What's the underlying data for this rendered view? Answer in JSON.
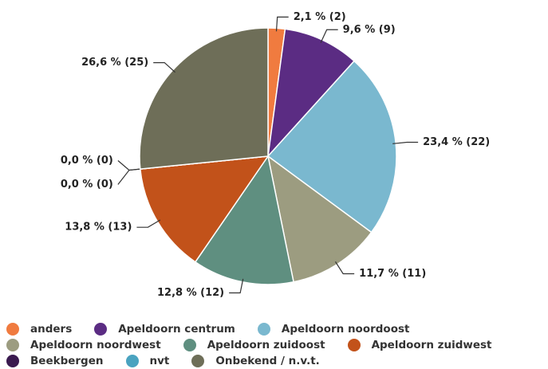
{
  "chart_data": {
    "type": "pie",
    "categories": [
      "anders",
      "Apeldoorn centrum",
      "Apeldoorn noordoost",
      "Apeldoorn noordwest",
      "Apeldoorn zuidoost",
      "Apeldoorn zuidwest",
      "Beekbergen",
      "nvt",
      "Onbekend / n.v.t."
    ],
    "values": [
      2,
      9,
      22,
      11,
      12,
      13,
      0,
      0,
      25
    ],
    "value_labels": [
      "2,1 % (2)",
      "9,6 % (9)",
      "23,4 % (22)",
      "11,7 % (11)",
      "12,8 % (12)",
      "13,8 % (13)",
      "0,0 % (0)",
      "0,0 % (0)",
      "26,6 % (25)"
    ],
    "colors": [
      "#f07b3f",
      "#5b2c83",
      "#7ab8cf",
      "#9c9c80",
      "#5f8f80",
      "#c2521a",
      "#3a1a4f",
      "#4aa3c0",
      "#6e6e58"
    ],
    "legend": "bottom"
  }
}
